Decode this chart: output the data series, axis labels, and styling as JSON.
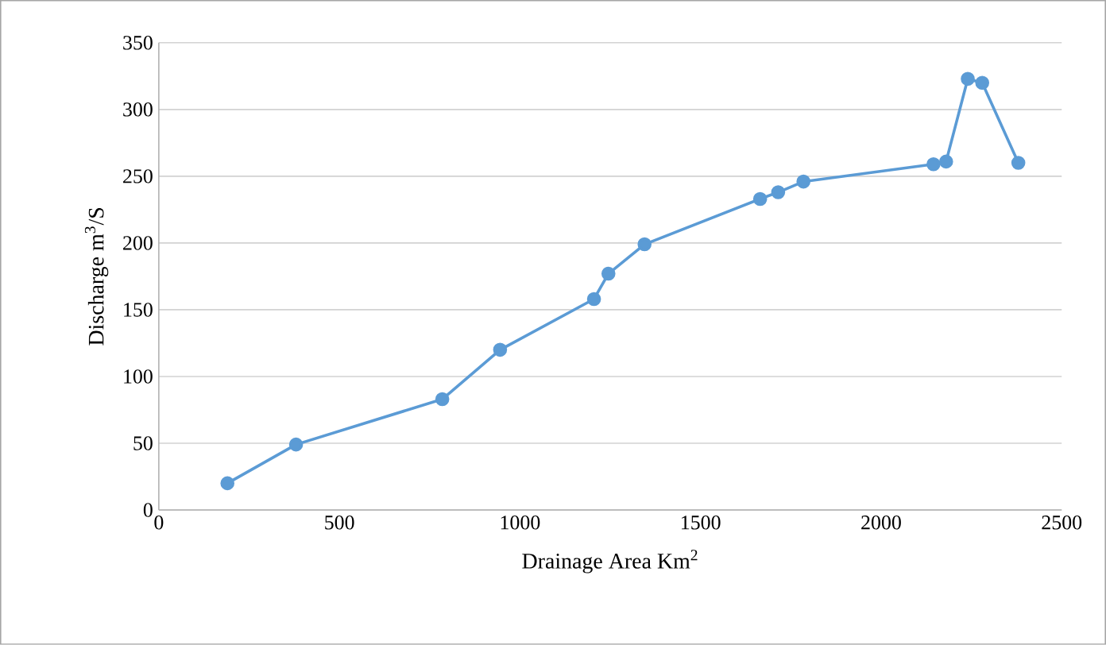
{
  "chart_data": {
    "type": "line",
    "xlabel": "Drainage Area Km$^{2}$",
    "ylabel": "Discharge m$^{3}$/S",
    "x": [
      190,
      380,
      785,
      945,
      1205,
      1245,
      1345,
      1665,
      1715,
      1785,
      2145,
      2180,
      2240,
      2280,
      2380
    ],
    "values": [
      20,
      49,
      83,
      120,
      158,
      177,
      199,
      233,
      238,
      246,
      259,
      261,
      323,
      320,
      260
    ],
    "color": "#5b9bd5",
    "marker": "circle",
    "line_style": "solid",
    "grid": "y",
    "xlim": [
      0,
      2500
    ],
    "xticks": [
      0,
      500,
      1000,
      1500,
      2000,
      2500
    ],
    "ylim": [
      0,
      350
    ],
    "yticks": [
      0,
      50,
      100,
      150,
      200,
      250,
      300,
      350
    ]
  }
}
